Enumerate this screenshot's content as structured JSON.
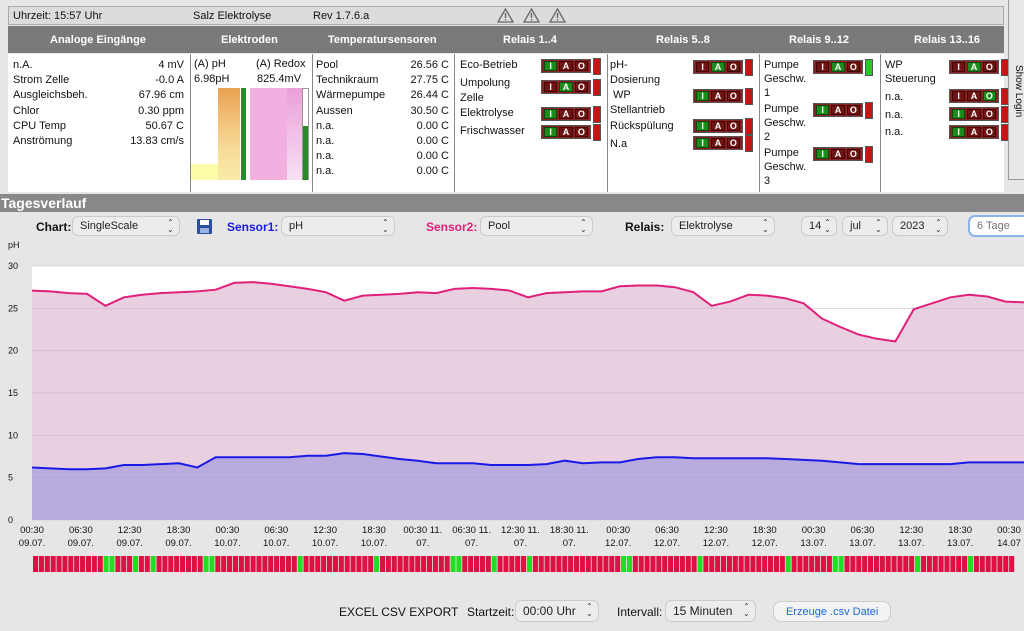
{
  "topbar": {
    "time": "Uhrzeit: 15:57 Uhr",
    "title": "Salz Elektrolyse",
    "version": "Rev 1.7.6.a"
  },
  "headers": [
    "Analoge Eingänge",
    "Elektroden",
    "Temperatursensoren",
    "Relais 1..4",
    "Relais 5..8",
    "Relais 9..12",
    "Relais 13..16"
  ],
  "analog": [
    {
      "label": "n.A.",
      "value": "4 mV"
    },
    {
      "label": "Strom Zelle",
      "value": "-0.0 A"
    },
    {
      "label": "Ausgleichsbeh.",
      "value": "67.96 cm"
    },
    {
      "label": "Chlor",
      "value": "0.30 ppm"
    },
    {
      "label": "CPU Temp",
      "value": "50.67 C"
    },
    {
      "label": "Anströmung",
      "value": "13.83 cm/s"
    }
  ],
  "electrodes": {
    "ph_label": "(A) pH",
    "ph_value": "6.98pH",
    "redox_label": "(A) Redox",
    "redox_value": "825.4mV"
  },
  "temps": [
    {
      "label": "Pool",
      "value": "26.56 C"
    },
    {
      "label": "Technikraum",
      "value": "27.75 C"
    },
    {
      "label": "Wärmepumpe",
      "value": "26.44 C"
    },
    {
      "label": "Aussen",
      "value": "30.50 C"
    },
    {
      "label": "n.a.",
      "value": "0.00 C"
    },
    {
      "label": "n.a.",
      "value": "0.00 C"
    },
    {
      "label": "n.a.",
      "value": "0.00 C"
    },
    {
      "label": "n.a.",
      "value": "0.00 C"
    }
  ],
  "relais1": [
    "Eco-Betrieb",
    "Umpolung",
    "Zelle",
    "Elektrolyse",
    "Frischwasser"
  ],
  "relais5": [
    "pH-",
    "Dosierung",
    "WP",
    "Stellantrieb",
    "Rückspülung",
    "N.a"
  ],
  "relais9": [
    "Pumpe",
    "Geschw.",
    "1",
    "Pumpe",
    "Geschw.",
    "2",
    "Pumpe",
    "Geschw.",
    "3"
  ],
  "relais13": [
    "WP",
    "Steuerung",
    "n.a.",
    "n.a.",
    "n.a."
  ],
  "relay_letters": [
    "I",
    "A",
    "O"
  ],
  "show_login": "Show Login",
  "section_title": "Tagesverlauf",
  "controls": {
    "chart_label": "Chart:",
    "chart_value": "SingleScale",
    "sensor1_label": "Sensor1:",
    "sensor1_value": "pH",
    "sensor2_label": "Sensor2:",
    "sensor2_value": "Pool",
    "relais_label": "Relais:",
    "relais_value": "Elektrolyse",
    "day": "14",
    "month": "jul",
    "year": "2023",
    "range_placeholder": "6 Tage"
  },
  "colors": {
    "sensor1": "#1a1ae6",
    "sensor2": "#e0207a",
    "relay_on": "#22dd22",
    "relay_off": "#dd1144"
  },
  "chart_data": {
    "type": "area",
    "ylabel": "pH",
    "ylim": [
      0,
      30
    ],
    "yticks": [
      0,
      5,
      10,
      15,
      20,
      25,
      30
    ],
    "xticks": [
      "00:30\n09.07.",
      "06:30\n09.07.",
      "12:30\n09.07.",
      "18:30\n09.07.",
      "00:30\n10.07.",
      "06:30\n10.07.",
      "12:30\n10.07.",
      "18:30\n10.07.",
      "00:30 11.\n07.",
      "06:30 11.\n07.",
      "12:30 11.\n07.",
      "18:30 11.\n07.",
      "00:30\n12.07.",
      "06:30\n12.07.",
      "12:30\n12.07.",
      "18:30\n12.07.",
      "00:30\n13.07.",
      "06:30\n13.07.",
      "12:30\n13.07.",
      "18:30\n13.07.",
      "00:30\n14.07"
    ],
    "series": [
      {
        "name": "pH",
        "values": [
          6.2,
          6.1,
          6.0,
          6.0,
          6.1,
          6.5,
          6.5,
          6.6,
          6.7,
          6.2,
          7.4,
          7.4,
          7.4,
          7.4,
          7.4,
          7.6,
          7.6,
          7.9,
          7.8,
          7.5,
          7.2,
          7.0,
          6.7,
          6.7,
          6.7,
          6.5,
          6.5,
          6.5,
          6.6,
          7.0,
          6.7,
          6.8,
          6.8,
          7.2,
          7.4,
          7.4,
          7.3,
          7.3,
          7.3,
          7.3,
          7.3,
          7.2,
          7.1,
          7.0,
          6.8,
          6.6,
          6.6,
          6.6,
          6.6,
          6.6,
          6.6,
          6.8,
          6.8,
          6.8,
          6.8
        ]
      },
      {
        "name": "Pool",
        "values": [
          27.1,
          27.0,
          26.8,
          26.7,
          25.3,
          26.3,
          26.6,
          26.8,
          26.9,
          27.0,
          27.2,
          28.0,
          28.1,
          27.9,
          27.6,
          27.3,
          26.9,
          25.9,
          26.5,
          26.6,
          26.7,
          26.9,
          26.8,
          27.3,
          27.4,
          27.3,
          27.1,
          26.3,
          26.8,
          26.9,
          27.0,
          27.0,
          27.6,
          27.7,
          27.7,
          27.5,
          26.9,
          25.3,
          25.8,
          26.6,
          26.5,
          26.2,
          25.6,
          23.8,
          22.8,
          21.9,
          21.4,
          21.1,
          24.9,
          25.6,
          26.3,
          26.6,
          26.4,
          25.8,
          25.7
        ]
      }
    ],
    "relay_states": [
      0,
      0,
      0,
      0,
      0,
      0,
      0,
      0,
      0,
      0,
      0,
      0,
      1,
      1,
      0,
      0,
      0,
      1,
      0,
      0,
      1,
      0,
      0,
      0,
      0,
      0,
      0,
      0,
      0,
      1,
      1,
      0,
      0,
      0,
      0,
      0,
      0,
      0,
      0,
      0,
      0,
      0,
      0,
      0,
      0,
      1,
      0,
      0,
      0,
      0,
      0,
      0,
      0,
      0,
      0,
      0,
      0,
      0,
      1,
      0,
      0,
      0,
      0,
      0,
      0,
      0,
      0,
      0,
      0,
      0,
      0,
      1,
      1,
      0,
      0,
      0,
      0,
      0,
      1,
      0,
      0,
      0,
      0,
      0,
      1,
      0,
      0,
      0,
      0,
      0,
      0,
      0,
      0,
      0,
      0,
      0,
      0,
      0,
      0,
      0,
      1,
      1,
      0,
      0,
      0,
      0,
      0,
      0,
      0,
      0,
      0,
      0,
      0,
      1,
      0,
      0,
      0,
      0,
      0,
      0,
      0,
      0,
      0,
      0,
      0,
      0,
      0,
      0,
      1,
      0,
      0,
      0,
      0,
      0,
      0,
      0,
      1,
      1,
      0,
      0,
      0,
      0,
      0,
      0,
      0,
      0,
      0,
      0,
      0,
      0,
      1,
      0,
      0,
      0,
      0,
      0,
      0,
      0,
      0,
      1,
      0,
      0,
      0,
      0,
      0,
      0,
      0
    ]
  },
  "export": {
    "title": "EXCEL CSV EXPORT",
    "start_label": "Startzeit:",
    "start_value": "00:00 Uhr",
    "interval_label": "Intervall:",
    "interval_value": "15 Minuten",
    "button": "Erzeuge .csv Datei"
  }
}
